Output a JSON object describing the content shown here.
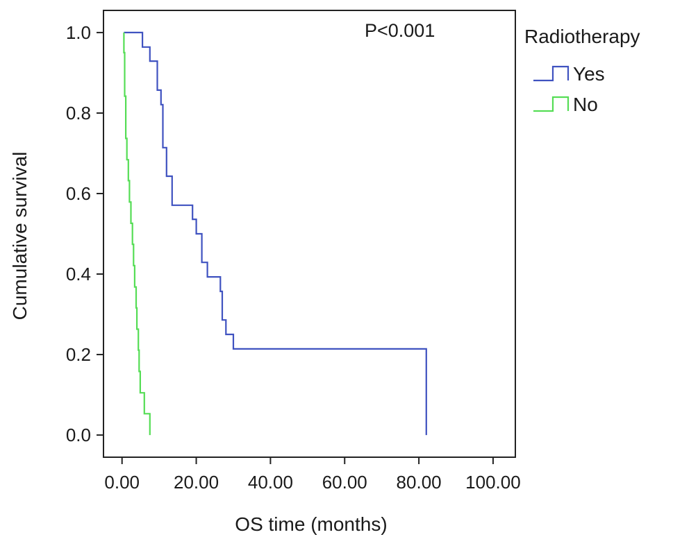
{
  "chart_data": {
    "type": "line",
    "subtype": "kaplan-meier-step",
    "xlabel": "OS time (months)",
    "ylabel": "Cumulative survival",
    "xlim": [
      -5,
      106
    ],
    "ylim": [
      -0.055,
      1.055
    ],
    "x_ticks": [
      0,
      20,
      40,
      60,
      80,
      100
    ],
    "x_tick_labels": [
      "0.00",
      "20.00",
      "40.00",
      "60.00",
      "80.00",
      "100.00"
    ],
    "y_ticks": [
      0,
      0.2,
      0.4,
      0.6,
      0.8,
      1.0
    ],
    "y_tick_labels": [
      "0.0",
      "0.2",
      "0.4",
      "0.6",
      "0.8",
      "1.0"
    ],
    "annotation": "P<0.001",
    "grid": false,
    "legend": {
      "title": "Radiotherapy",
      "position": "right-outside"
    },
    "series": [
      {
        "name": "Yes",
        "color": "#3f52c0",
        "points": [
          [
            0.5,
            1.0
          ],
          [
            5.5,
            1.0
          ],
          [
            5.5,
            0.964
          ],
          [
            7.5,
            0.964
          ],
          [
            7.5,
            0.929
          ],
          [
            9.5,
            0.929
          ],
          [
            9.5,
            0.857
          ],
          [
            10.5,
            0.857
          ],
          [
            10.5,
            0.821
          ],
          [
            11,
            0.821
          ],
          [
            11,
            0.714
          ],
          [
            12,
            0.714
          ],
          [
            12,
            0.643
          ],
          [
            13.5,
            0.643
          ],
          [
            13.5,
            0.571
          ],
          [
            19,
            0.571
          ],
          [
            19,
            0.536
          ],
          [
            20,
            0.536
          ],
          [
            20,
            0.5
          ],
          [
            21.5,
            0.5
          ],
          [
            21.5,
            0.429
          ],
          [
            23,
            0.429
          ],
          [
            23,
            0.393
          ],
          [
            26.5,
            0.393
          ],
          [
            26.5,
            0.357
          ],
          [
            27,
            0.357
          ],
          [
            27,
            0.286
          ],
          [
            28,
            0.286
          ],
          [
            28,
            0.25
          ],
          [
            30,
            0.25
          ],
          [
            30,
            0.214
          ],
          [
            82,
            0.214
          ],
          [
            82,
            0.0
          ]
        ]
      },
      {
        "name": "No",
        "color": "#55dd55",
        "points": [
          [
            0.5,
            1.0
          ],
          [
            0.5,
            0.95
          ],
          [
            0.7,
            0.95
          ],
          [
            0.7,
            0.842
          ],
          [
            1.0,
            0.842
          ],
          [
            1.0,
            0.737
          ],
          [
            1.3,
            0.737
          ],
          [
            1.3,
            0.684
          ],
          [
            1.7,
            0.684
          ],
          [
            1.7,
            0.632
          ],
          [
            2.0,
            0.632
          ],
          [
            2.0,
            0.579
          ],
          [
            2.4,
            0.579
          ],
          [
            2.4,
            0.526
          ],
          [
            2.8,
            0.526
          ],
          [
            2.8,
            0.474
          ],
          [
            3.1,
            0.474
          ],
          [
            3.1,
            0.421
          ],
          [
            3.4,
            0.421
          ],
          [
            3.4,
            0.368
          ],
          [
            3.8,
            0.368
          ],
          [
            3.8,
            0.316
          ],
          [
            4.0,
            0.316
          ],
          [
            4.0,
            0.263
          ],
          [
            4.4,
            0.263
          ],
          [
            4.4,
            0.211
          ],
          [
            4.6,
            0.211
          ],
          [
            4.6,
            0.158
          ],
          [
            4.9,
            0.158
          ],
          [
            4.9,
            0.105
          ],
          [
            6.0,
            0.105
          ],
          [
            6.0,
            0.053
          ],
          [
            7.5,
            0.053
          ],
          [
            7.5,
            0.0
          ]
        ]
      }
    ]
  }
}
